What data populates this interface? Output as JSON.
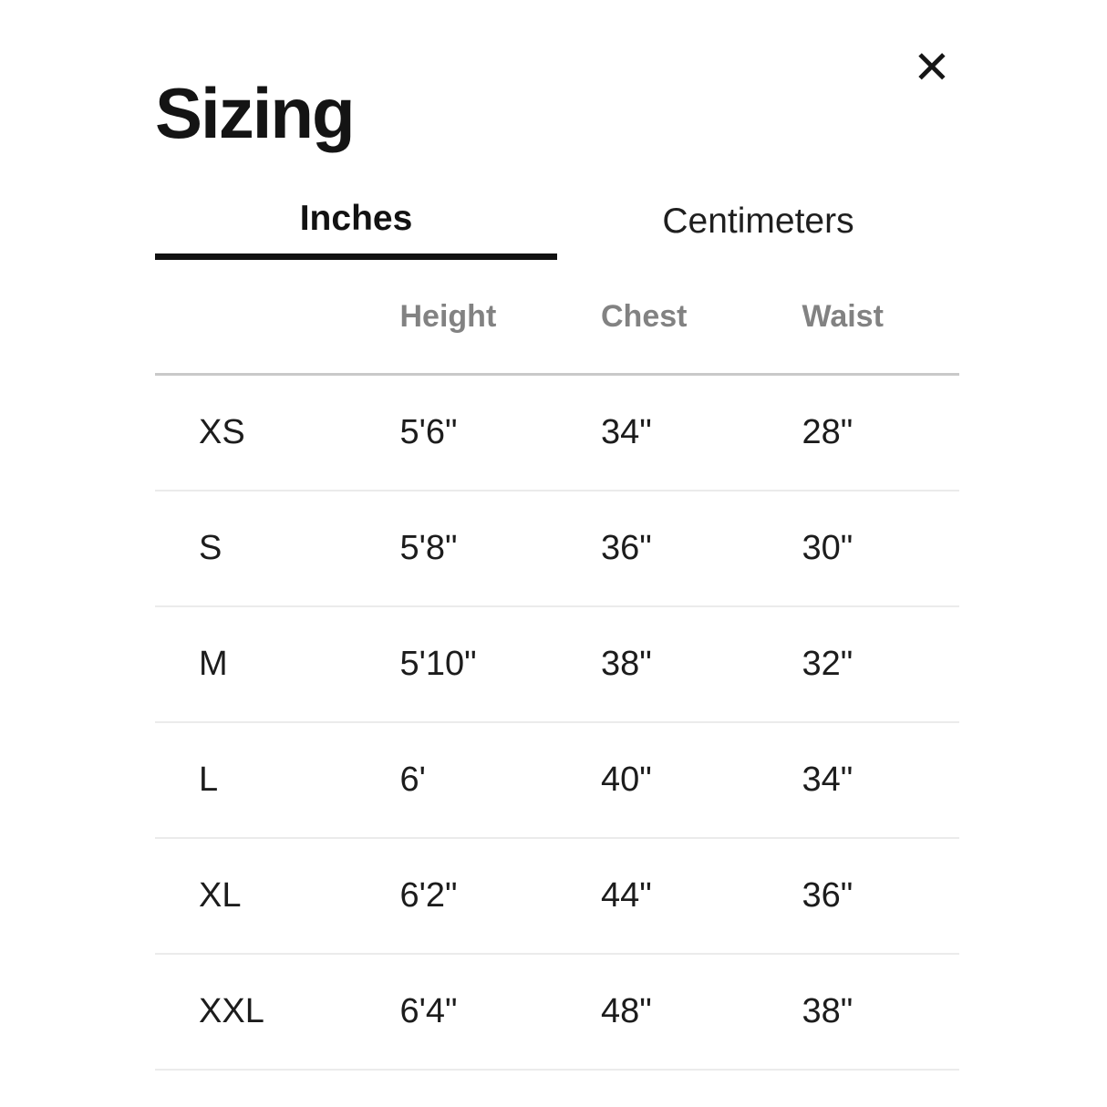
{
  "modal": {
    "title": "Sizing"
  },
  "icons": {
    "close": "✕"
  },
  "tabs": [
    {
      "label": "Inches",
      "active": true
    },
    {
      "label": "Centimeters",
      "active": false
    }
  ],
  "table": {
    "columns": [
      "",
      "Height",
      "Chest",
      "Waist"
    ],
    "rows": [
      [
        "XS",
        "5'6\"",
        "34\"",
        "28\""
      ],
      [
        "S",
        "5'8\"",
        "36\"",
        "30\""
      ],
      [
        "M",
        "5'10\"",
        "38\"",
        "32\""
      ],
      [
        "L",
        "6'",
        "40\"",
        "34\""
      ],
      [
        "XL",
        "6'2\"",
        "44\"",
        "36\""
      ],
      [
        "XXL",
        "6'4\"",
        "48\"",
        "38\""
      ]
    ]
  },
  "colors": {
    "text": "#1c1c1c",
    "header_muted": "#828282",
    "active_tab_underline": "#111111",
    "divider_strong": "#c9c9c9",
    "divider_light": "#ebebeb"
  }
}
